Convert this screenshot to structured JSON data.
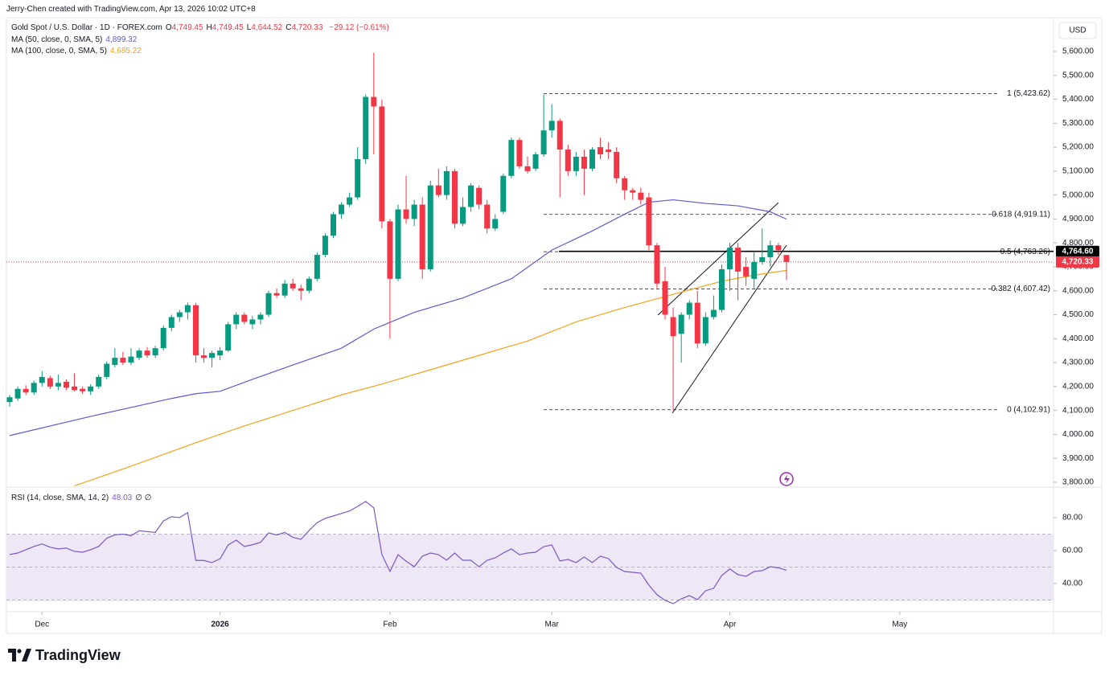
{
  "header": {
    "attribution": "Jerry-Chen created with TradingView.com, Apr 13, 2026 10:02 UTC+8"
  },
  "footer": {
    "logo": "TradingView"
  },
  "chart_data": [
    {
      "type": "candlestick",
      "title": "Gold Spot / U.S. Dollar · 1D · FOREX.com",
      "legend_values": [
        {
          "key": "O",
          "text": "4,749.45"
        },
        {
          "key": "H",
          "text": "4,749.45"
        },
        {
          "key": "L",
          "text": "4,644.52"
        },
        {
          "key": "C",
          "text": "4,720.33"
        }
      ],
      "change": "−29.12 (−0.61%)",
      "currency": "USD",
      "up_color": "#089981",
      "down_color": "#f23645",
      "open": [
        4135,
        4150,
        4190,
        4175,
        4215,
        4235,
        4200,
        4220,
        4200,
        4190,
        4180,
        4200,
        4240,
        4290,
        4320,
        4300,
        4320,
        4350,
        4330,
        4360,
        4445,
        4490,
        4510,
        4540,
        4330,
        4320,
        4330,
        4350,
        4460,
        4500,
        4460,
        4480,
        4500,
        4590,
        4580,
        4630,
        4610,
        4600,
        4650,
        4750,
        4830,
        4920,
        4960,
        4990,
        5150,
        5410,
        5370,
        4890,
        4650,
        4940,
        4900,
        4960,
        4690,
        5040,
        5000,
        5100,
        4880,
        4950,
        5030,
        4960,
        4860,
        4930,
        5080,
        5230,
        5120,
        5110,
        5170,
        5270,
        5310,
        5190,
        5100,
        5160,
        5110,
        5200,
        5190,
        5180,
        5070,
        5020,
        5010,
        4990,
        4790,
        4640,
        4490,
        4420,
        4500,
        4550,
        4380,
        4490,
        4520,
        4690,
        4780,
        4700,
        4650,
        4720,
        4740,
        4790,
        4749.45
      ],
      "high": [
        4165,
        4200,
        4205,
        4225,
        4265,
        4245,
        4250,
        4230,
        4255,
        4200,
        4210,
        4250,
        4305,
        4360,
        4345,
        4360,
        4360,
        4365,
        4370,
        4455,
        4500,
        4520,
        4550,
        4550,
        4360,
        4350,
        4365,
        4470,
        4510,
        4510,
        4495,
        4510,
        4600,
        4610,
        4645,
        4650,
        4625,
        4660,
        4760,
        4840,
        4930,
        4970,
        5010,
        5200,
        5420,
        5595,
        5400,
        4900,
        4960,
        5080,
        4980,
        4990,
        5060,
        5110,
        5120,
        5110,
        4990,
        5050,
        5040,
        4980,
        4920,
        5090,
        5240,
        5240,
        5160,
        5180,
        5420,
        5380,
        5320,
        5210,
        5180,
        5190,
        5200,
        5240,
        5220,
        5200,
        5080,
        5030,
        5030,
        5010,
        4800,
        4700,
        4530,
        4510,
        4560,
        4600,
        4510,
        4580,
        4710,
        4800,
        4800,
        4740,
        4760,
        4860,
        4810,
        4800,
        4749.45
      ],
      "low": [
        4115,
        4140,
        4165,
        4165,
        4200,
        4190,
        4185,
        4185,
        4180,
        4170,
        4165,
        4190,
        4230,
        4280,
        4290,
        4290,
        4310,
        4320,
        4320,
        4350,
        4430,
        4470,
        4480,
        4300,
        4300,
        4280,
        4310,
        4345,
        4440,
        4460,
        4440,
        4460,
        4490,
        4570,
        4570,
        4600,
        4560,
        4590,
        4640,
        4740,
        4820,
        4900,
        4950,
        4980,
        5130,
        5170,
        4860,
        4400,
        4640,
        4880,
        4870,
        4650,
        4680,
        4990,
        4980,
        4860,
        4870,
        4930,
        4940,
        4840,
        4850,
        4920,
        5070,
        5110,
        5090,
        5100,
        5160,
        5240,
        4990,
        5080,
        5080,
        5000,
        5100,
        5150,
        5150,
        5050,
        4980,
        4980,
        4960,
        4770,
        4610,
        4480,
        4100,
        4300,
        4480,
        4360,
        4370,
        4480,
        4510,
        4600,
        4560,
        4620,
        4610,
        4710,
        4700,
        4750,
        4644.52
      ],
      "close": [
        4155,
        4190,
        4175,
        4215,
        4240,
        4200,
        4215,
        4195,
        4185,
        4180,
        4200,
        4240,
        4295,
        4320,
        4300,
        4325,
        4350,
        4330,
        4360,
        4445,
        4490,
        4510,
        4540,
        4330,
        4320,
        4340,
        4350,
        4460,
        4500,
        4470,
        4480,
        4500,
        4590,
        4580,
        4630,
        4610,
        4600,
        4650,
        4750,
        4830,
        4920,
        4960,
        4990,
        5150,
        5410,
        5370,
        4890,
        4650,
        4940,
        4900,
        4960,
        4690,
        5040,
        5000,
        5100,
        4880,
        4950,
        5040,
        4960,
        4860,
        4900,
        5080,
        5230,
        5120,
        5100,
        5170,
        5270,
        5310,
        5190,
        5100,
        5160,
        5110,
        5190,
        5170,
        5180,
        5070,
        5020,
        5010,
        4980,
        4790,
        4630,
        4500,
        4410,
        4500,
        4550,
        4380,
        4490,
        4520,
        4690,
        4780,
        4680,
        4660,
        4720,
        4740,
        4790,
        4770,
        4720.33
      ],
      "overlays": [
        {
          "name": "MA (50, close, 0, SMA, 5)",
          "value_label": "4,899.32",
          "color": "#5b5bd6",
          "x": [
            0,
            10,
            20,
            23,
            26,
            30,
            35,
            41,
            45,
            50,
            56,
            62,
            67,
            72,
            76,
            79,
            82,
            86,
            90,
            94,
            96
          ],
          "values": [
            3995,
            4075,
            4150,
            4170,
            4180,
            4230,
            4290,
            4360,
            4440,
            4510,
            4570,
            4650,
            4770,
            4850,
            4920,
            4970,
            4980,
            4965,
            4955,
            4930,
            4899.32
          ]
        },
        {
          "name": "MA (100, close, 0, SMA, 5)",
          "value_label": "4,685.22",
          "color": "#f7a21b",
          "x": [
            8,
            15,
            23,
            29,
            35,
            41,
            46,
            52,
            58,
            64,
            70,
            76,
            82,
            88,
            92,
            96
          ],
          "values": [
            3785,
            3867,
            3965,
            4035,
            4100,
            4165,
            4210,
            4270,
            4330,
            4390,
            4470,
            4530,
            4585,
            4640,
            4665,
            4685.22
          ]
        }
      ],
      "fib_levels": [
        {
          "value": 5423.62,
          "label": "1 (5,423.62)"
        },
        {
          "value": 4919.11,
          "label": "0.618 (4,919.11)"
        },
        {
          "value": 4763.26,
          "label": "0.5 (4,763.26)"
        },
        {
          "value": 4607.42,
          "label": "0.382 (4,607.42)"
        },
        {
          "value": 4102.91,
          "label": "0 (4,102.91)"
        }
      ],
      "price_lines": [
        {
          "value": 4764.6,
          "label": "4,764.60",
          "color": "#000000"
        },
        {
          "value": 4720.33,
          "label": "4,720.33",
          "color": "#f23645"
        }
      ],
      "xlim": [
        -0.4,
        129
      ],
      "xticks": [
        {
          "value": 4,
          "label": "Dec"
        },
        {
          "value": 26,
          "label": "2026"
        },
        {
          "value": 47,
          "label": "Feb"
        },
        {
          "value": 67,
          "label": "Mar"
        },
        {
          "value": 89,
          "label": "Apr"
        },
        {
          "value": 110,
          "label": "May"
        }
      ],
      "ylim": [
        3783,
        5741
      ],
      "yticks": [
        {
          "value": 3800,
          "label": "3,800.00"
        },
        {
          "value": 3900,
          "label": "3,900.00"
        },
        {
          "value": 4000,
          "label": "4,000.00"
        },
        {
          "value": 4100,
          "label": "4,100.00"
        },
        {
          "value": 4200,
          "label": "4,200.00"
        },
        {
          "value": 4300,
          "label": "4,300.00"
        },
        {
          "value": 4400,
          "label": "4,400.00"
        },
        {
          "value": 4500,
          "label": "4,500.00"
        },
        {
          "value": 4600,
          "label": "4,600.00"
        },
        {
          "value": 4700,
          "label": "4,700.00"
        },
        {
          "value": 4800,
          "label": "4,800.00"
        },
        {
          "value": 4900,
          "label": "4,900.00"
        },
        {
          "value": 5000,
          "label": "5,000.00"
        },
        {
          "value": 5100,
          "label": "5,100.00"
        },
        {
          "value": 5200,
          "label": "5,200.00"
        },
        {
          "value": 5300,
          "label": "5,300.00"
        },
        {
          "value": 5400,
          "label": "5,400.00"
        },
        {
          "value": 5500,
          "label": "5,500.00"
        },
        {
          "value": 5600,
          "label": "5,600.00"
        }
      ]
    },
    {
      "type": "line",
      "name": "RSI (14, close, SMA, 14, 2)",
      "value_label": "48.03",
      "extra": "∅ ∅",
      "color": "#7e57c2",
      "band_color": "#ede7f6",
      "band": [
        30,
        70
      ],
      "midline": 50,
      "values": [
        57.6,
        58.5,
        60.5,
        62.5,
        64,
        62,
        61,
        61.5,
        59.5,
        59,
        60.5,
        62.5,
        67.5,
        69.5,
        70,
        69,
        72,
        71.5,
        71,
        78,
        80.5,
        80,
        83,
        54,
        54,
        52.7,
        55,
        63.4,
        66.3,
        62.5,
        63.5,
        65,
        70.7,
        69.5,
        71,
        68,
        66.8,
        72.2,
        77,
        79.5,
        81,
        82.5,
        84,
        86.8,
        89.8,
        85.9,
        57.6,
        47.3,
        57.5,
        53.5,
        50.2,
        56.6,
        58.5,
        57.5,
        54.2,
        58.5,
        54.1,
        54.1,
        50.2,
        54.1,
        55.6,
        58.5,
        61,
        57.5,
        58.5,
        59,
        62.4,
        63.4,
        53.7,
        54.6,
        52.7,
        56.1,
        52.7,
        56.6,
        55.1,
        49.8,
        47.3,
        46.8,
        46.3,
        39,
        33.2,
        29.8,
        27.8,
        30.7,
        32.7,
        30.2,
        35.6,
        37.1,
        44.9,
        48.8,
        45.4,
        44.4,
        47.3,
        47.8,
        50.2,
        49.5,
        48.03
      ],
      "ylim": [
        23.4,
        98
      ],
      "yticks": [
        {
          "value": 40,
          "label": "40.00"
        },
        {
          "value": 60,
          "label": "60.00"
        },
        {
          "value": 80,
          "label": "80.00"
        }
      ]
    }
  ]
}
